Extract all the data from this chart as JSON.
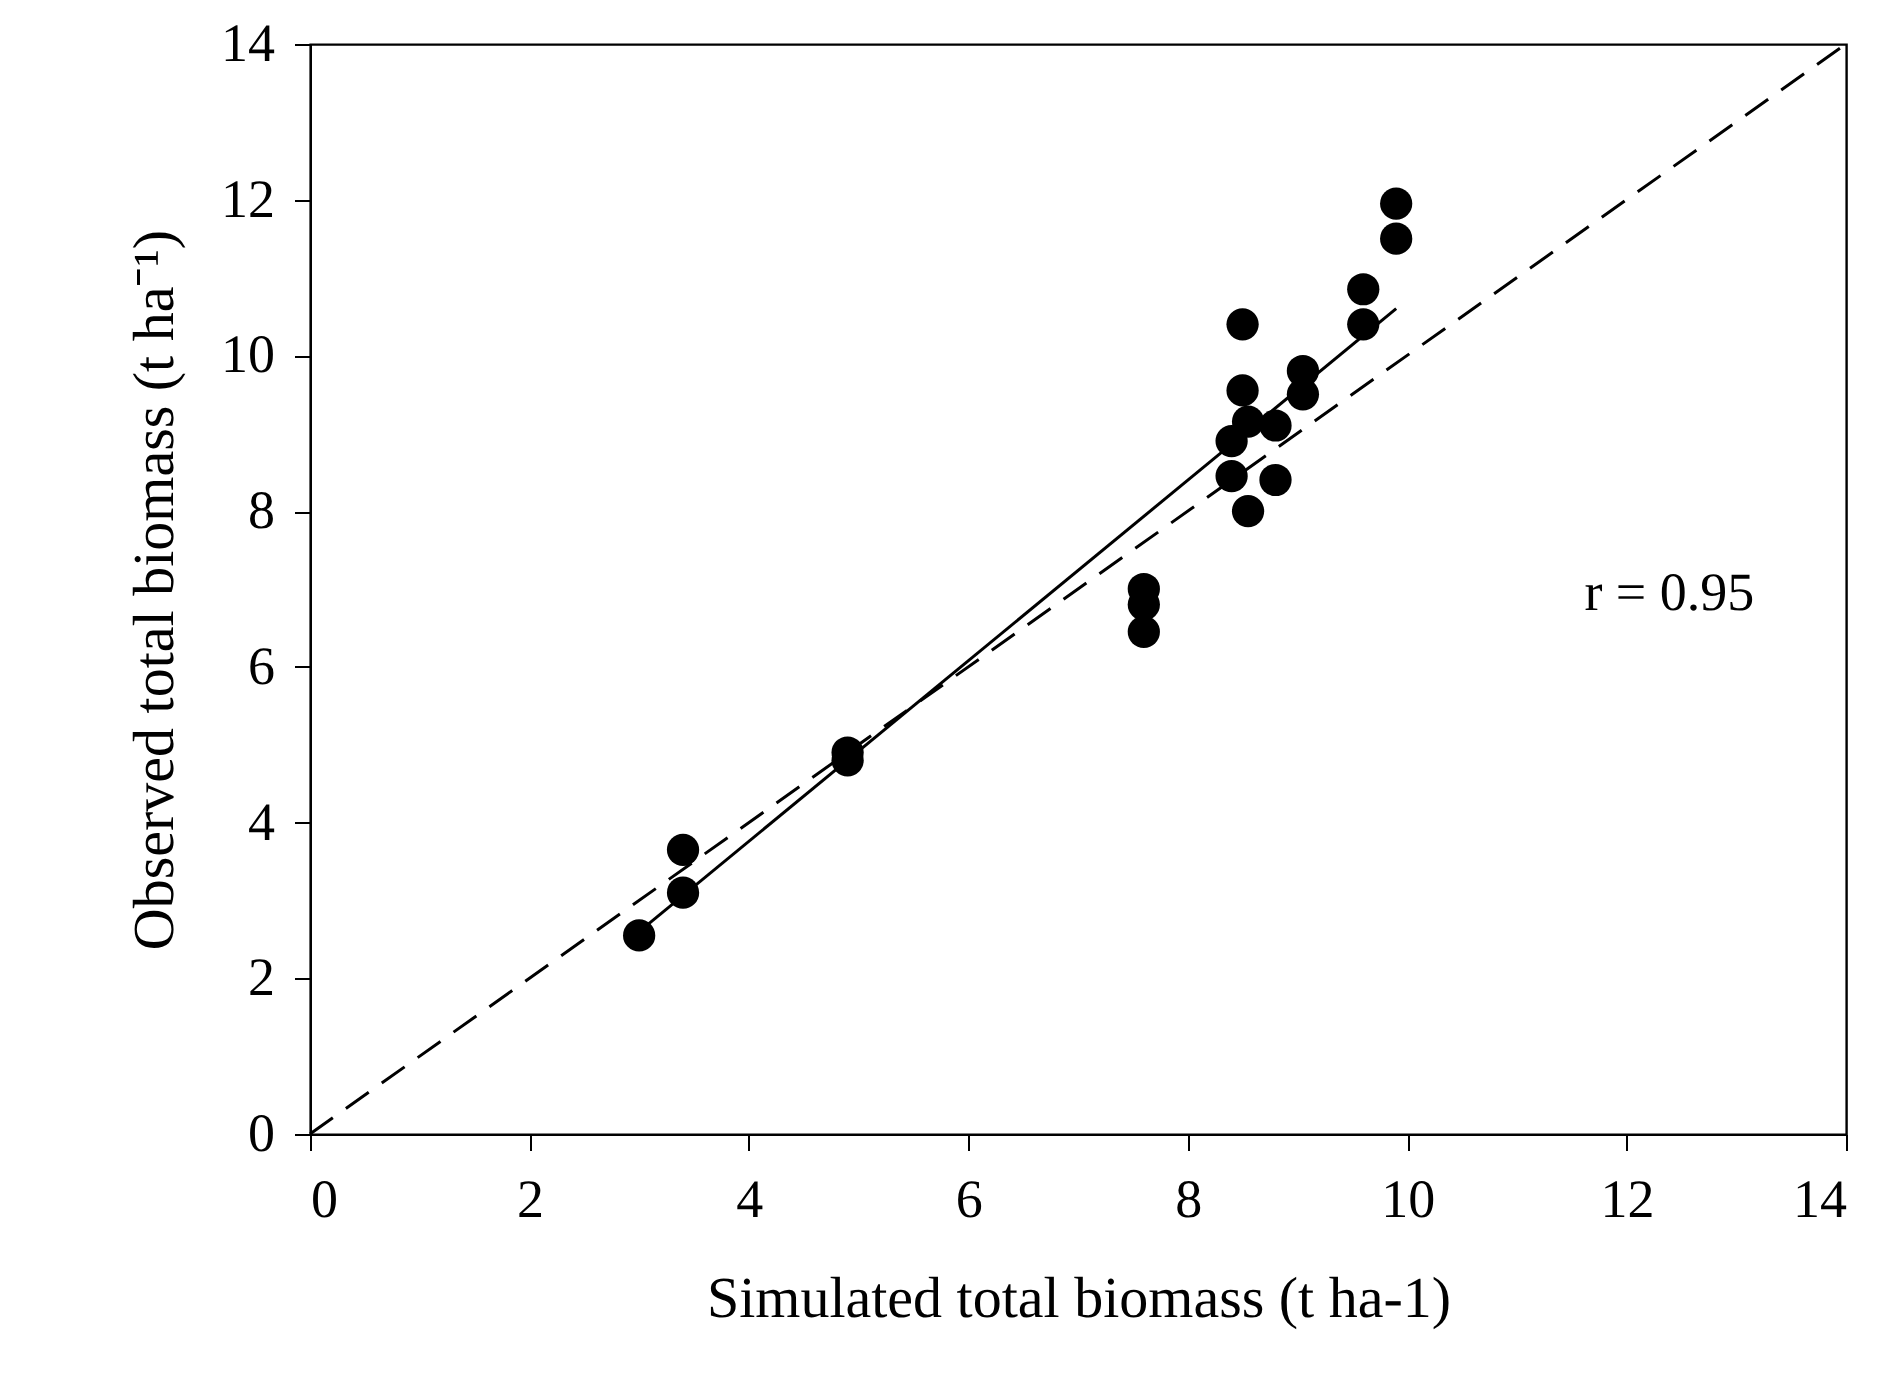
{
  "chart_data": {
    "type": "scatter",
    "xlabel": "Simulated total biomass (t ha-1)",
    "ylabel": "Observed total biomass (t ha⁻¹)",
    "xlim": [
      0,
      14
    ],
    "ylim": [
      0,
      14
    ],
    "xticks": [
      0,
      2,
      4,
      6,
      8,
      10,
      12,
      14
    ],
    "yticks": [
      0,
      2,
      4,
      6,
      8,
      10,
      12,
      14
    ],
    "grid": false,
    "marker": "circle",
    "annotations": [
      "r = 0.95"
    ],
    "series": [
      {
        "color": "#000000",
        "x": [
          3.0,
          3.4,
          3.4,
          4.9,
          4.9,
          7.6,
          7.6,
          7.6,
          8.4,
          8.4,
          8.5,
          8.5,
          8.55,
          8.55,
          8.8,
          8.8,
          9.05,
          9.05,
          9.6,
          9.6,
          9.9,
          9.9
        ],
        "values": [
          2.55,
          3.1,
          3.65,
          4.8,
          4.9,
          6.45,
          6.8,
          7.0,
          8.45,
          8.9,
          10.4,
          9.55,
          9.15,
          8.0,
          9.1,
          8.4,
          9.5,
          9.8,
          10.4,
          10.85,
          11.5,
          11.95
        ]
      },
      {
        "type": "line",
        "color": "#000000",
        "line_style": "solid",
        "marker": "none",
        "x": [
          3.0,
          9.9
        ],
        "values": [
          2.6,
          10.6
        ]
      },
      {
        "type": "line",
        "color": "#000000",
        "line_style": "dashed",
        "marker": "none",
        "x": [
          0,
          14
        ],
        "values": [
          0,
          14
        ]
      }
    ]
  }
}
